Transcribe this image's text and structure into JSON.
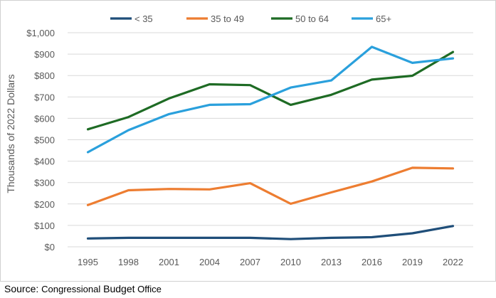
{
  "chart_data": {
    "type": "line",
    "title": "",
    "xlabel": "",
    "ylabel": "Thousands of 2022 Dollars",
    "x": [
      "1995",
      "1998",
      "2001",
      "2004",
      "2007",
      "2010",
      "2013",
      "2016",
      "2019",
      "2022"
    ],
    "ylim": [
      0,
      1000
    ],
    "yticks": [
      0,
      100,
      200,
      300,
      400,
      500,
      600,
      700,
      800,
      900,
      1000
    ],
    "ytick_labels": [
      "$0",
      "$100",
      "$200",
      "$300",
      "$400",
      "$500",
      "$600",
      "$700",
      "$800",
      "$900",
      "$1,000"
    ],
    "grid": "horizontal",
    "legend_position": "top",
    "series": [
      {
        "name": "< 35",
        "color": "#1f4e79",
        "values": [
          39,
          42,
          42,
          42,
          42,
          36,
          42,
          45,
          63,
          97
        ]
      },
      {
        "name": "35 to 49",
        "color": "#ed7d31",
        "values": [
          195,
          264,
          270,
          268,
          297,
          201,
          254,
          305,
          369,
          366
        ]
      },
      {
        "name": "50 to 64",
        "color": "#1e6b24",
        "values": [
          549,
          606,
          693,
          759,
          755,
          663,
          710,
          781,
          799,
          910
        ]
      },
      {
        "name": "65+",
        "color": "#2aa0dc",
        "values": [
          442,
          545,
          620,
          663,
          666,
          744,
          777,
          934,
          859,
          880
        ]
      }
    ]
  },
  "source": {
    "label": "Source: ",
    "org1": "Congressional",
    "org2": " Budget",
    "org3": " Office"
  }
}
